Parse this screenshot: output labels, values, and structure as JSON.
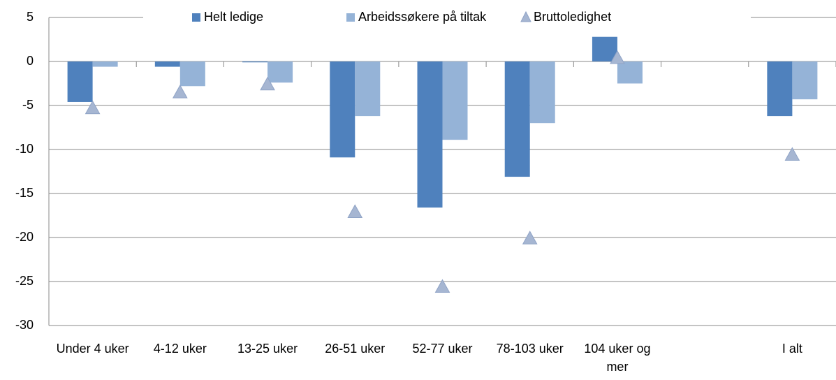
{
  "chart_data": {
    "type": "bar",
    "categories": [
      "Under 4 uker",
      "4-12 uker",
      "13-25 uker",
      "26-51 uker",
      "52-77 uker",
      "78-103 uker",
      "104 uker og mer",
      null,
      "I alt"
    ],
    "series": [
      {
        "name": "Helt ledige",
        "color": "#4f81bd",
        "marker": "bar",
        "values": [
          -4.6,
          -0.6,
          -0.1,
          -10.9,
          -16.6,
          -13.1,
          2.8,
          null,
          -6.2
        ]
      },
      {
        "name": "Arbeidssøkere på tiltak",
        "color": "#95b3d7",
        "marker": "bar",
        "values": [
          -0.6,
          -2.8,
          -2.4,
          -6.2,
          -8.9,
          -7.0,
          -2.5,
          null,
          -4.3
        ]
      },
      {
        "name": "Bruttoledighet",
        "color": "#a6b6d2",
        "marker": "triangle",
        "values": [
          -5.3,
          -3.5,
          -2.6,
          -17.1,
          -25.6,
          -20.1,
          0.4,
          null,
          -10.6
        ]
      }
    ],
    "ylim": [
      -30,
      5
    ],
    "yticks": [
      -30,
      -25,
      -20,
      -15,
      -10,
      -5,
      0,
      5
    ],
    "grid": true,
    "legend": "top"
  }
}
